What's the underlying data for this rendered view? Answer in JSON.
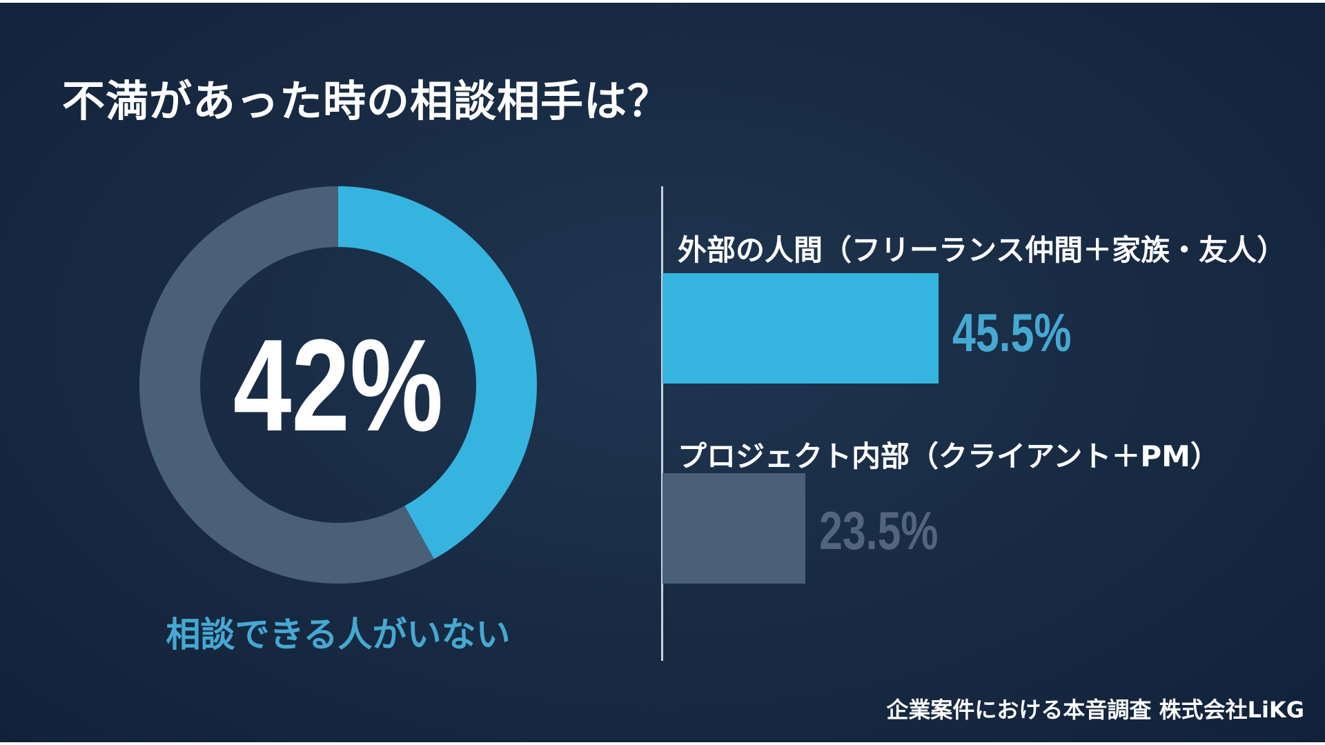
{
  "title": "不満があった時の相談相手は？",
  "chart_data": [
    {
      "type": "pie",
      "variant": "donut",
      "center_label": "42%",
      "caption": "相談できる人がいない",
      "slices": [
        {
          "label": "相談できる人がいない",
          "value": 42,
          "color": "#36b4e0"
        },
        {
          "label": "",
          "value": 58,
          "color": "#4a5f78"
        }
      ]
    },
    {
      "type": "bar",
      "orientation": "horizontal",
      "xlim": [
        0,
        100
      ],
      "categories": [
        "外部の人間（フリーランス仲間＋家族・友人）",
        "プロジェクト内部（クライアント＋PM）"
      ],
      "values": [
        45.5,
        23.5
      ],
      "value_labels": [
        "45.5%",
        "23.5%"
      ],
      "colors": [
        "#36b4e0",
        "#4a5f78"
      ],
      "label_colors": [
        "#45a9d2",
        "#53657d"
      ]
    }
  ],
  "source": "企業案件における本音調査  株式会社LiKG"
}
